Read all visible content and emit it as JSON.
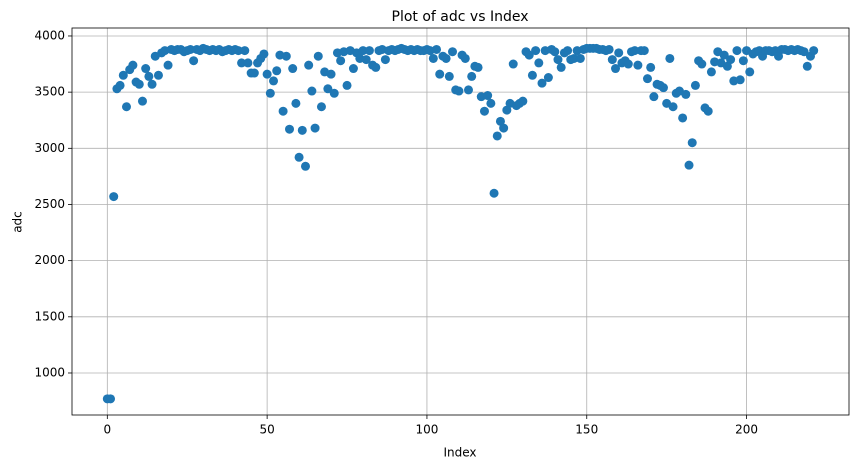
{
  "chart_data": {
    "type": "scatter",
    "title": "Plot of adc vs Index",
    "x_label": "Index",
    "y_label": "adc",
    "color": "#1f77b4",
    "grid": true,
    "xlim": [
      -11.05,
      232.05
    ],
    "ylim": [
      626,
      4071
    ],
    "xticks": [
      0,
      50,
      100,
      150,
      200
    ],
    "yticks": [
      1000,
      1500,
      2000,
      2500,
      3000,
      3500,
      4000
    ],
    "x": [
      0,
      1,
      2,
      3,
      4,
      5,
      6,
      7,
      8,
      9,
      10,
      11,
      12,
      13,
      14,
      15,
      16,
      17,
      18,
      19,
      20,
      21,
      22,
      23,
      24,
      25,
      26,
      27,
      28,
      29,
      30,
      31,
      32,
      33,
      34,
      35,
      36,
      37,
      38,
      39,
      40,
      41,
      42,
      43,
      44,
      45,
      46,
      47,
      48,
      49,
      50,
      51,
      52,
      53,
      54,
      55,
      56,
      57,
      58,
      59,
      60,
      61,
      62,
      63,
      64,
      65,
      66,
      67,
      68,
      69,
      70,
      71,
      72,
      73,
      74,
      75,
      76,
      77,
      78,
      79,
      80,
      81,
      82,
      83,
      84,
      85,
      86,
      87,
      88,
      89,
      90,
      91,
      92,
      93,
      94,
      95,
      96,
      97,
      98,
      99,
      100,
      101,
      102,
      103,
      104,
      105,
      106,
      107,
      108,
      109,
      110,
      111,
      112,
      113,
      114,
      115,
      116,
      117,
      118,
      119,
      120,
      121,
      122,
      123,
      124,
      125,
      126,
      127,
      128,
      129,
      130,
      131,
      132,
      133,
      134,
      135,
      136,
      137,
      138,
      139,
      140,
      141,
      142,
      143,
      144,
      145,
      146,
      147,
      148,
      149,
      150,
      151,
      152,
      153,
      154,
      155,
      156,
      157,
      158,
      159,
      160,
      161,
      162,
      163,
      164,
      165,
      166,
      167,
      168,
      169,
      170,
      171,
      172,
      173,
      174,
      175,
      176,
      177,
      178,
      179,
      180,
      181,
      182,
      183,
      184,
      185,
      186,
      187,
      188,
      189,
      190,
      191,
      192,
      193,
      194,
      195,
      196,
      197,
      198,
      199,
      200,
      201,
      202,
      203,
      204,
      205,
      206,
      207,
      208,
      209,
      210,
      211,
      212,
      213,
      214,
      215,
      216,
      217,
      218,
      219,
      220,
      221
    ],
    "values": [
      770,
      770,
      2570,
      3530,
      3560,
      3650,
      3370,
      3700,
      3740,
      3590,
      3570,
      3420,
      3710,
      3640,
      3570,
      3820,
      3650,
      3850,
      3870,
      3740,
      3880,
      3870,
      3880,
      3880,
      3860,
      3870,
      3880,
      3780,
      3880,
      3870,
      3890,
      3880,
      3870,
      3880,
      3870,
      3880,
      3860,
      3870,
      3880,
      3870,
      3880,
      3870,
      3760,
      3870,
      3760,
      3670,
      3670,
      3760,
      3800,
      3840,
      3660,
      3490,
      3600,
      3690,
      3830,
      3330,
      3820,
      3170,
      3710,
      3400,
      2920,
      3160,
      2840,
      3740,
      3510,
      3180,
      3820,
      3370,
      3680,
      3530,
      3660,
      3490,
      3850,
      3780,
      3860,
      3560,
      3870,
      3710,
      3850,
      3800,
      3870,
      3790,
      3870,
      3740,
      3720,
      3870,
      3880,
      3790,
      3870,
      3880,
      3870,
      3880,
      3890,
      3880,
      3870,
      3880,
      3870,
      3880,
      3870,
      3870,
      3880,
      3870,
      3800,
      3880,
      3660,
      3820,
      3800,
      3640,
      3860,
      3520,
      3510,
      3830,
      3800,
      3520,
      3640,
      3730,
      3720,
      3460,
      3330,
      3470,
      3400,
      2600,
      3110,
      3240,
      3180,
      3340,
      3400,
      3750,
      3380,
      3400,
      3420,
      3860,
      3830,
      3650,
      3870,
      3760,
      3580,
      3870,
      3630,
      3880,
      3860,
      3790,
      3720,
      3850,
      3870,
      3790,
      3800,
      3870,
      3800,
      3880,
      3890,
      3890,
      3890,
      3890,
      3880,
      3880,
      3870,
      3880,
      3790,
      3710,
      3850,
      3760,
      3780,
      3750,
      3860,
      3870,
      3740,
      3870,
      3870,
      3620,
      3720,
      3460,
      3570,
      3560,
      3540,
      3400,
      3800,
      3370,
      3490,
      3510,
      3270,
      3480,
      2850,
      3050,
      3560,
      3780,
      3750,
      3360,
      3330,
      3680,
      3770,
      3860,
      3760,
      3830,
      3730,
      3790,
      3600,
      3870,
      3610,
      3780,
      3870,
      3680,
      3840,
      3860,
      3870,
      3820,
      3870,
      3870,
      3860,
      3870,
      3820,
      3880,
      3880,
      3870,
      3880,
      3870,
      3880,
      3870,
      3860,
      3730,
      3820,
      3870
    ]
  }
}
